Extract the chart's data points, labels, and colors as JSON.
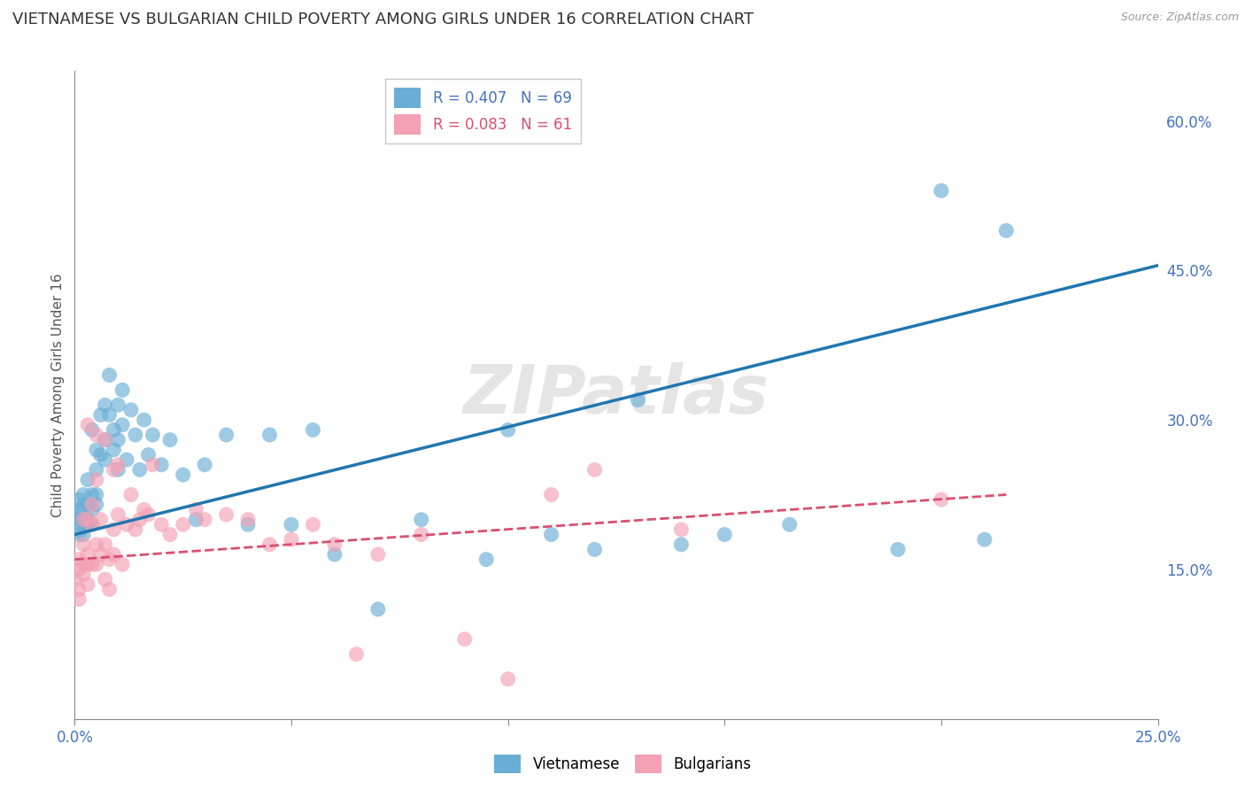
{
  "title": "VIETNAMESE VS BULGARIAN CHILD POVERTY AMONG GIRLS UNDER 16 CORRELATION CHART",
  "source": "Source: ZipAtlas.com",
  "ylabel": "Child Poverty Among Girls Under 16",
  "xlim": [
    0.0,
    0.25
  ],
  "ylim": [
    0.0,
    0.65
  ],
  "xticks": [
    0.0,
    0.05,
    0.1,
    0.15,
    0.2,
    0.25
  ],
  "xtick_labels": [
    "0.0%",
    "",
    "",
    "",
    "",
    "25.0%"
  ],
  "ytick_labels": [
    "15.0%",
    "30.0%",
    "45.0%",
    "60.0%"
  ],
  "yticks": [
    0.15,
    0.3,
    0.45,
    0.6
  ],
  "legend1_label": "R = 0.407   N = 69",
  "legend2_label": "R = 0.083   N = 61",
  "viet_color": "#6aaed6",
  "bulg_color": "#f4a0b5",
  "viet_line_color": "#2176ae",
  "bulg_line_color": "#d94f70",
  "watermark": "ZIPatlas",
  "title_fontsize": 13,
  "label_fontsize": 11,
  "tick_fontsize": 12,
  "tick_color": "#4472C4",
  "viet_scatter_x": [
    0.0,
    0.001,
    0.001,
    0.001,
    0.001,
    0.001,
    0.002,
    0.002,
    0.002,
    0.002,
    0.002,
    0.003,
    0.003,
    0.003,
    0.003,
    0.004,
    0.004,
    0.004,
    0.004,
    0.005,
    0.005,
    0.005,
    0.005,
    0.006,
    0.006,
    0.007,
    0.007,
    0.007,
    0.008,
    0.008,
    0.009,
    0.009,
    0.01,
    0.01,
    0.01,
    0.011,
    0.011,
    0.012,
    0.013,
    0.014,
    0.015,
    0.016,
    0.017,
    0.018,
    0.02,
    0.022,
    0.025,
    0.028,
    0.03,
    0.035,
    0.04,
    0.045,
    0.05,
    0.055,
    0.06,
    0.07,
    0.08,
    0.095,
    0.1,
    0.11,
    0.12,
    0.13,
    0.14,
    0.15,
    0.165,
    0.19,
    0.2,
    0.21,
    0.215
  ],
  "viet_scatter_y": [
    0.205,
    0.195,
    0.185,
    0.21,
    0.2,
    0.22,
    0.185,
    0.195,
    0.215,
    0.2,
    0.225,
    0.2,
    0.215,
    0.195,
    0.24,
    0.195,
    0.225,
    0.21,
    0.29,
    0.215,
    0.27,
    0.25,
    0.225,
    0.305,
    0.265,
    0.28,
    0.315,
    0.26,
    0.345,
    0.305,
    0.29,
    0.27,
    0.315,
    0.28,
    0.25,
    0.33,
    0.295,
    0.26,
    0.31,
    0.285,
    0.25,
    0.3,
    0.265,
    0.285,
    0.255,
    0.28,
    0.245,
    0.2,
    0.255,
    0.285,
    0.195,
    0.285,
    0.195,
    0.29,
    0.165,
    0.11,
    0.2,
    0.16,
    0.29,
    0.185,
    0.17,
    0.32,
    0.175,
    0.185,
    0.195,
    0.17,
    0.53,
    0.18,
    0.49
  ],
  "bulg_scatter_x": [
    0.0,
    0.001,
    0.001,
    0.001,
    0.001,
    0.002,
    0.002,
    0.002,
    0.002,
    0.003,
    0.003,
    0.003,
    0.003,
    0.004,
    0.004,
    0.004,
    0.005,
    0.005,
    0.005,
    0.006,
    0.006,
    0.007,
    0.007,
    0.008,
    0.008,
    0.009,
    0.009,
    0.01,
    0.01,
    0.011,
    0.012,
    0.013,
    0.014,
    0.015,
    0.016,
    0.017,
    0.018,
    0.02,
    0.022,
    0.025,
    0.028,
    0.03,
    0.035,
    0.04,
    0.045,
    0.05,
    0.055,
    0.06,
    0.065,
    0.07,
    0.08,
    0.09,
    0.1,
    0.11,
    0.12,
    0.14,
    0.2,
    0.003,
    0.005,
    0.007,
    0.009
  ],
  "bulg_scatter_y": [
    0.14,
    0.13,
    0.15,
    0.16,
    0.12,
    0.145,
    0.2,
    0.175,
    0.155,
    0.135,
    0.165,
    0.2,
    0.155,
    0.155,
    0.195,
    0.215,
    0.24,
    0.155,
    0.175,
    0.2,
    0.165,
    0.14,
    0.175,
    0.13,
    0.16,
    0.25,
    0.19,
    0.255,
    0.205,
    0.155,
    0.195,
    0.225,
    0.19,
    0.2,
    0.21,
    0.205,
    0.255,
    0.195,
    0.185,
    0.195,
    0.21,
    0.2,
    0.205,
    0.2,
    0.175,
    0.18,
    0.195,
    0.175,
    0.065,
    0.165,
    0.185,
    0.08,
    0.04,
    0.225,
    0.25,
    0.19,
    0.22,
    0.295,
    0.285,
    0.28,
    0.165
  ],
  "viet_trend_x": [
    0.0,
    0.25
  ],
  "viet_trend_y": [
    0.185,
    0.455
  ],
  "bulg_trend_x": [
    0.0,
    0.215
  ],
  "bulg_trend_y": [
    0.16,
    0.225
  ],
  "background_color": "#ffffff",
  "grid_color": "#cccccc"
}
